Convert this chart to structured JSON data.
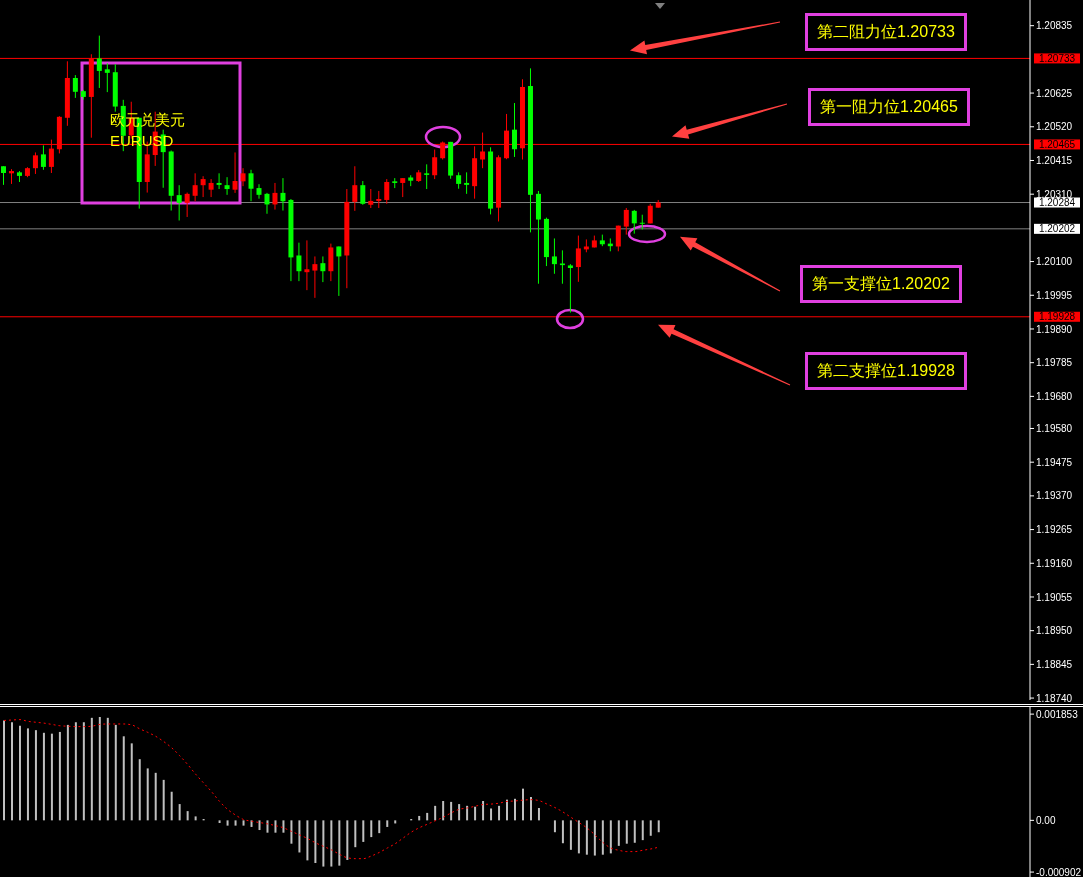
{
  "chart_data": [
    {
      "type": "candlestick",
      "categories": [
        null,
        null,
        null,
        null,
        null,
        null,
        null,
        null,
        null,
        null,
        null,
        null,
        null,
        null,
        null,
        null,
        null,
        null,
        null,
        null,
        null,
        null,
        null,
        null,
        null,
        null,
        null,
        null,
        null,
        null,
        null,
        null,
        null,
        null,
        null,
        null,
        null,
        null,
        null,
        null,
        null,
        null,
        null,
        null,
        null,
        null,
        null,
        null,
        null,
        null,
        null,
        null,
        null,
        null,
        null,
        null,
        null,
        null,
        null,
        null,
        null,
        null,
        null,
        null,
        null,
        null,
        null,
        null,
        null,
        null,
        null,
        null,
        null,
        null,
        null,
        null,
        null,
        null,
        null,
        null,
        null,
        null,
        null,
        null,
        null,
        null,
        null,
        null,
        null,
        null,
        null,
        null,
        null,
        null,
        null,
        null,
        null,
        null,
        null,
        null,
        null,
        null,
        null,
        null,
        null,
        null,
        null,
        null,
        null,
        null,
        null,
        null,
        null,
        null,
        null,
        null,
        null,
        null,
        null,
        null,
        null,
        null,
        null,
        null,
        null,
        null,
        null,
        null,
        null
      ],
      "ohlc": [
        [
          1.20397,
          1.20397,
          1.20339,
          1.20376
        ],
        [
          1.20375,
          1.20388,
          1.20342,
          1.20382
        ],
        [
          1.20378,
          1.20382,
          1.20348,
          1.20367
        ],
        [
          1.20367,
          1.20394,
          1.20363,
          1.20391
        ],
        [
          1.20391,
          1.2044,
          1.20373,
          1.20431
        ],
        [
          1.20434,
          1.20462,
          1.20386,
          1.20395
        ],
        [
          1.20395,
          1.2048,
          1.20376,
          1.20452
        ],
        [
          1.2045,
          1.20553,
          1.20437,
          1.20551
        ],
        [
          1.20548,
          1.20724,
          1.20523,
          1.20672
        ],
        [
          1.20672,
          1.20681,
          1.2061,
          1.20629
        ],
        [
          1.20631,
          1.20635,
          1.20605,
          1.20613
        ],
        [
          1.20613,
          1.20746,
          1.20486,
          1.20733
        ],
        [
          1.20733,
          1.20804,
          1.20641,
          1.20694
        ],
        [
          1.20699,
          1.20718,
          1.20628,
          1.20688
        ],
        [
          1.2069,
          1.20715,
          1.20567,
          1.20583
        ],
        [
          1.20585,
          1.20604,
          1.20444,
          1.20492
        ],
        [
          1.20493,
          1.20598,
          1.20483,
          1.20548
        ],
        [
          1.20548,
          1.20548,
          1.20265,
          1.20348
        ],
        [
          1.20348,
          1.20474,
          1.20315,
          1.20434
        ],
        [
          1.20432,
          1.20567,
          1.20398,
          1.20505
        ],
        [
          1.20496,
          1.20511,
          1.2033,
          1.20441
        ],
        [
          1.20443,
          1.20446,
          1.20259,
          1.20305
        ],
        [
          1.20307,
          1.20338,
          1.20228,
          1.20283
        ],
        [
          1.20283,
          1.20315,
          1.20239,
          1.20311
        ],
        [
          1.20305,
          1.20375,
          1.20288,
          1.20338
        ],
        [
          1.20338,
          1.20366,
          1.20301,
          1.20357
        ],
        [
          1.20324,
          1.20357,
          1.20301,
          1.20345
        ],
        [
          1.20345,
          1.20375,
          1.20326,
          1.20339
        ],
        [
          1.20338,
          1.20363,
          1.20308,
          1.20326
        ],
        [
          1.20324,
          1.2044,
          1.20314,
          1.20351
        ],
        [
          1.2035,
          1.20391,
          1.20335,
          1.20375
        ],
        [
          1.20375,
          1.20386,
          1.20288,
          1.20327
        ],
        [
          1.20329,
          1.20341,
          1.20296,
          1.20308
        ],
        [
          1.20311,
          1.20314,
          1.20249,
          1.20278
        ],
        [
          1.20278,
          1.20345,
          1.20262,
          1.20314
        ],
        [
          1.20314,
          1.2036,
          1.20259,
          1.20288
        ],
        [
          1.20292,
          1.20295,
          1.20039,
          1.20113
        ],
        [
          1.20119,
          1.20159,
          1.20039,
          1.2007
        ],
        [
          1.20067,
          1.20166,
          1.20011,
          1.20076
        ],
        [
          1.20072,
          1.20116,
          1.19987,
          1.20092
        ],
        [
          1.20095,
          1.20116,
          1.20036,
          1.2007
        ],
        [
          1.2007,
          1.20156,
          1.20039,
          1.20144
        ],
        [
          1.20147,
          1.20147,
          1.19993,
          1.20116
        ],
        [
          1.20119,
          1.20326,
          1.20017,
          1.20286
        ],
        [
          1.20286,
          1.20397,
          1.20258,
          1.20338
        ],
        [
          1.20338,
          1.20351,
          1.20277,
          1.2028
        ],
        [
          1.20277,
          1.20326,
          1.20267,
          1.20289
        ],
        [
          1.20289,
          1.2032,
          1.20267,
          1.20295
        ],
        [
          1.20292,
          1.20357,
          1.2028,
          1.20348
        ],
        [
          1.2035,
          1.2036,
          1.20329,
          1.20345
        ],
        [
          1.20345,
          1.2036,
          1.20301,
          1.2036
        ],
        [
          1.20362,
          1.20369,
          1.20335,
          1.20352
        ],
        [
          1.20351,
          1.20385,
          1.20348,
          1.20378
        ],
        [
          1.20375,
          1.20403,
          1.20326,
          1.2037
        ],
        [
          1.20369,
          1.20449,
          1.20357,
          1.20425
        ],
        [
          1.20422,
          1.20474,
          1.20418,
          1.20471
        ],
        [
          1.20473,
          1.20473,
          1.20358,
          1.20368
        ],
        [
          1.20369,
          1.20378,
          1.20327,
          1.20342
        ],
        [
          1.20345,
          1.20378,
          1.20311,
          1.20339
        ],
        [
          1.20335,
          1.20459,
          1.20296,
          1.20422
        ],
        [
          1.20418,
          1.20502,
          1.20391,
          1.20443
        ],
        [
          1.20443,
          1.20456,
          1.20247,
          1.20265
        ],
        [
          1.20268,
          1.20431,
          1.20225,
          1.20425
        ],
        [
          1.20422,
          1.2056,
          1.20419,
          1.20508
        ],
        [
          1.20511,
          1.20594,
          1.20426,
          1.2045
        ],
        [
          1.20453,
          1.20668,
          1.20418,
          1.20644
        ],
        [
          1.20647,
          1.20702,
          1.20191,
          1.20308
        ],
        [
          1.20311,
          1.2032,
          1.20031,
          1.20231
        ],
        [
          1.20233,
          1.20237,
          1.20086,
          1.20114
        ],
        [
          1.20116,
          1.20172,
          1.20062,
          1.20092
        ],
        [
          1.20094,
          1.20135,
          1.20031,
          1.20089
        ],
        [
          1.20088,
          1.20092,
          1.19941,
          1.2008
        ],
        [
          1.20083,
          1.20181,
          1.20037,
          1.20141
        ],
        [
          1.20138,
          1.20169,
          1.20129,
          1.20147
        ],
        [
          1.20144,
          1.20181,
          1.20144,
          1.20166
        ],
        [
          1.20166,
          1.20184,
          1.20148,
          1.20154
        ],
        [
          1.20156,
          1.20172,
          1.20132,
          1.20148
        ],
        [
          1.20147,
          1.20212,
          1.20132,
          1.20212
        ],
        [
          1.20209,
          1.20267,
          1.20184,
          1.20261
        ],
        [
          1.20258,
          1.20261,
          1.20187,
          1.20219
        ],
        [
          1.20221,
          1.20246,
          1.202,
          1.20218
        ],
        [
          1.20219,
          1.2028,
          1.20219,
          1.20274
        ],
        [
          1.20268,
          1.20292,
          1.20268,
          1.20284
        ],
        null,
        null,
        null,
        null,
        null,
        null,
        null,
        null,
        null,
        null,
        null,
        null,
        null,
        null,
        null,
        null,
        null,
        null,
        null,
        null,
        null,
        null,
        null,
        null,
        null,
        null,
        null,
        null,
        null,
        null,
        null,
        null,
        null,
        null,
        null,
        null,
        null,
        null,
        null,
        null,
        null,
        null,
        null,
        null,
        null,
        null
      ],
      "colors": [
        "#00ff00",
        "#ff0000",
        "#00ff00",
        "#ff0000",
        "#ff0000",
        "#00ff00",
        "#ff0000",
        "#ff0000",
        "#ff0000",
        "#00ff00",
        "#00ff00",
        "#ff0000",
        "#00ff00",
        "#00ff00",
        "#00ff00",
        "#00ff00",
        "#ff0000",
        "#00ff00",
        "#ff0000",
        "#ff0000",
        "#00ff00",
        "#00ff00",
        "#00ff00",
        "#ff0000",
        "#ff0000",
        "#ff0000",
        "#ff0000",
        "#00ff00",
        "#00ff00",
        "#ff0000",
        "#ff0000",
        "#00ff00",
        "#00ff00",
        "#00ff00",
        "#ff0000",
        "#00ff00",
        "#00ff00",
        "#00ff00",
        "#ff0000",
        "#ff0000",
        "#00ff00",
        "#ff0000",
        "#00ff00",
        "#ff0000",
        "#ff0000",
        "#00ff00",
        "#ff0000",
        "#ff0000",
        "#ff0000",
        "#00ff00",
        "#ff0000",
        "#00ff00",
        "#ff0000",
        "#00ff00",
        "#ff0000",
        "#ff0000",
        "#00ff00",
        "#00ff00",
        "#00ff00",
        "#ff0000",
        "#ff0000",
        "#00ff00",
        "#ff0000",
        "#ff0000",
        "#00ff00",
        "#ff0000",
        "#00ff00",
        "#00ff00",
        "#00ff00",
        "#00ff00",
        "#00ff00",
        "#00ff00",
        "#ff0000",
        "#ff0000",
        "#ff0000",
        "#00ff00",
        "#00ff00",
        "#ff0000",
        "#ff0000",
        "#00ff00",
        "#00ff00",
        "#ff0000",
        "#ff0000",
        null,
        null,
        null,
        null,
        null,
        null,
        null,
        null,
        null,
        null,
        null,
        null,
        null,
        null,
        null,
        null,
        null,
        null,
        null,
        null,
        null,
        null,
        null,
        null,
        null,
        null,
        null,
        null,
        null,
        null,
        null,
        null,
        null,
        null,
        null,
        null,
        null,
        null,
        null,
        null,
        null,
        null,
        null,
        null,
        null,
        null
      ],
      "ylim": [
        1.18734,
        1.20915
      ],
      "yticks": [
        1.20835,
        1.20625,
        {
          "value": 1.2052,
          "label": "1.20520"
        },
        1.20415,
        {
          "value": 1.2031,
          "label": "1.20310"
        },
        {
          "value": 1.201,
          "label": "1.20100"
        },
        1.19995,
        {
          "value": 1.1989,
          "label": "1.19890"
        },
        1.19785,
        {
          "value": 1.1968,
          "label": "1.19680"
        },
        {
          "value": 1.1958,
          "label": "1.19580"
        },
        1.19475,
        {
          "value": 1.1937,
          "label": "1.19370"
        },
        1.19265,
        {
          "value": 1.1916,
          "label": "1.19160"
        },
        1.19055,
        {
          "value": 1.1895,
          "label": "1.18950"
        },
        1.18845,
        {
          "value": 1.1874,
          "label": "1.18740"
        }
      ],
      "tick_labels": "y",
      "ref_lines": [
        {
          "axis": "y",
          "value": 1.20733,
          "label": "1.20733",
          "color": "#ff0000"
        },
        {
          "axis": "y",
          "value": 1.20465,
          "label": "1.20465",
          "color": "#ff0000"
        },
        {
          "axis": "y",
          "value": 1.20284,
          "label": "1.20284",
          "color": "#808080"
        },
        {
          "axis": "y",
          "value": 1.20202,
          "label": "1.20202",
          "color": "#808080"
        },
        {
          "axis": "y",
          "value": 1.19928,
          "label": "1.19928",
          "color": "#ff0000"
        }
      ],
      "annotations": [
        {
          "text": "第二阻力位1.20733",
          "y": 1.20733
        },
        {
          "text": "第一阻力位1.20465",
          "y": 1.20465
        },
        {
          "text": "第一支撑位1.20202",
          "y": 1.20202
        },
        {
          "text": "第二支撑位1.19928",
          "y": 1.19928
        },
        "欧元兑美元",
        "EURUSD"
      ]
    },
    {
      "type": "bar",
      "categories": [
        null,
        null,
        null,
        null,
        null,
        null,
        null,
        null,
        null,
        null,
        null,
        null,
        null,
        null,
        null,
        null,
        null,
        null,
        null,
        null,
        null,
        null,
        null,
        null,
        null,
        null,
        null,
        null,
        null,
        null,
        null,
        null,
        null,
        null,
        null,
        null,
        null,
        null,
        null,
        null,
        null,
        null,
        null,
        null,
        null,
        null,
        null,
        null,
        null,
        null,
        null,
        null,
        null,
        null,
        null,
        null,
        null,
        null,
        null,
        null,
        null,
        null,
        null,
        null,
        null,
        null,
        null,
        null,
        null,
        null,
        null,
        null,
        null,
        null,
        null,
        null,
        null,
        null,
        null,
        null,
        null,
        null,
        null,
        null,
        null,
        null,
        null,
        null,
        null,
        null,
        null,
        null,
        null,
        null,
        null,
        null,
        null,
        null,
        null,
        null,
        null,
        null,
        null,
        null,
        null,
        null,
        null,
        null,
        null,
        null,
        null,
        null,
        null,
        null,
        null,
        null,
        null,
        null,
        null,
        null,
        null,
        null,
        null,
        null,
        null,
        null,
        null,
        null,
        null
      ],
      "series": [
        {
          "type": "bar",
          "color": "#c0c0c0",
          "values": [
            0.001742,
            0.001711,
            0.00165,
            0.001604,
            0.001573,
            0.001527,
            0.001512,
            0.001542,
            0.001665,
            0.001711,
            0.001711,
            0.001788,
            0.001803,
            0.001788,
            0.001665,
            0.001466,
            0.001343,
            0.001067,
            0.000906,
            0.000829,
            0.000706,
            0.000499,
            0.000284,
            0.000161,
            6.9e-05,
            2.3e-05,
            0,
            -4.6e-05,
            -9.2e-05,
            -9.2e-05,
            -9.2e-05,
            -0.000115,
            -0.000169,
            -0.000215,
            -0.000215,
            -0.000215,
            -0.000407,
            -0.00056,
            -0.000698,
            -0.000744,
            -0.000806,
            -0.000806,
            -0.00079,
            -0.000691,
            -0.000468,
            -0.000376,
            -0.000292,
            -0.000223,
            -0.000115,
            -5.4e-05,
            0,
            2.3e-05,
            7.7e-05,
            0.00013,
            0.000253,
            0.000338,
            0.000322,
            0.000284,
            0.000253,
            0.000238,
            0.000338,
            0.000207,
            0.000253,
            0.000361,
            0.000376,
            0.000553,
            0.000407,
            0.000215,
            0,
            -0.000207,
            -0.000399,
            -0.000514,
            -0.000576,
            -0.000599,
            -0.000614,
            -0.000599,
            -0.000576,
            -0.000445,
            -0.000407,
            -0.000391,
            -0.000345,
            -0.000269,
            -0.000207,
            null,
            null,
            null,
            null,
            null,
            null,
            null,
            null,
            null,
            null,
            null,
            null,
            null,
            null,
            null,
            null,
            null,
            null,
            null,
            null,
            null,
            null,
            null,
            null,
            null,
            null,
            null,
            null,
            null,
            null,
            null,
            null,
            null,
            null,
            null,
            null,
            null,
            null,
            null,
            null,
            null,
            null,
            null,
            null,
            null,
            null
          ]
        },
        {
          "type": "line",
          "color": "#ff0000",
          "line_style": "dotted",
          "values": [
            0.001742,
            0.00175,
            0.001757,
            0.001727,
            0.001711,
            0.001696,
            0.001673,
            0.00165,
            0.001642,
            0.001635,
            0.001635,
            0.001642,
            0.001673,
            0.001681,
            0.001681,
            0.001681,
            0.001665,
            0.001596,
            0.001535,
            0.001466,
            0.001374,
            0.001266,
            0.001128,
            0.000975,
            0.000806,
            0.000652,
            0.000499,
            0.00033,
            0.000192,
            9.2e-05,
            1.5e-05,
            -1.5e-05,
            -3.8e-05,
            -6.1e-05,
            -9.2e-05,
            -0.00013,
            -0.000192,
            -0.000253,
            -0.000315,
            -0.000391,
            -0.000453,
            -0.000514,
            -0.000591,
            -0.000652,
            -0.000668,
            -0.000668,
            -0.000622,
            -0.00056,
            -0.000483,
            -0.000407,
            -0.000307,
            -0.000207,
            -0.00013,
            -6.9e-05,
            -8e-06,
            5.4e-05,
            0.00013,
            0.000192,
            0.000215,
            0.000246,
            0.000276,
            0.000284,
            0.000299,
            0.00033,
            0.000338,
            0.000353,
            0.000361,
            0.000345,
            0.000284,
            0.000223,
            0.000146,
            5.4e-05,
            -3.8e-05,
            -0.00013,
            -0.000253,
            -0.000384,
            -0.000483,
            -0.000522,
            -0.000545,
            -0.000545,
            -0.000522,
            -0.000499,
            -0.000468,
            null,
            null,
            null,
            null,
            null,
            null,
            null,
            null,
            null,
            null,
            null,
            null,
            null,
            null,
            null,
            null,
            null,
            null,
            null,
            null,
            null,
            null,
            null,
            null,
            null,
            null,
            null,
            null,
            null,
            null,
            null,
            null,
            null,
            null,
            null,
            null,
            null,
            null,
            null,
            null,
            null,
            null,
            null,
            null,
            null,
            null
          ]
        }
      ],
      "ylim": [
        -0.000988,
        0.001977
      ],
      "yticks": [
        0.001853,
        {
          "value": 0,
          "label": "0.00"
        },
        -0.000902
      ],
      "tick_labels": "y",
      "marker": "none"
    }
  ]
}
